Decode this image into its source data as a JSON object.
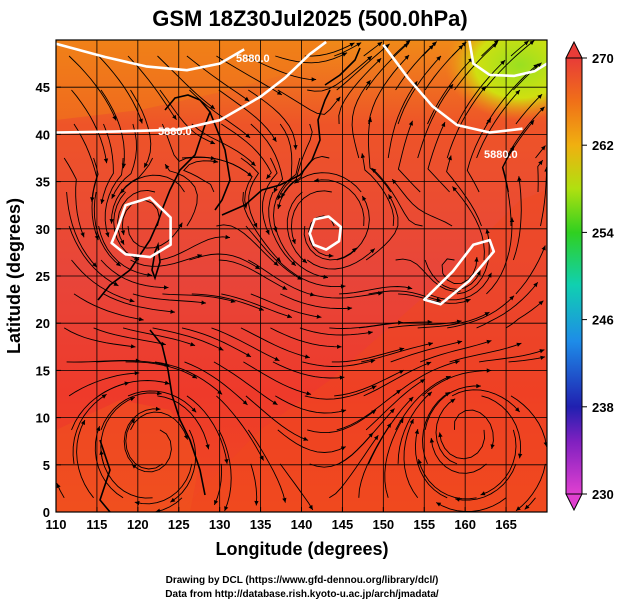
{
  "chart_data": {
    "type": "heatmap",
    "title": "GSM 18Z30Jul2025 (500.0hPa)",
    "xlabel": "Longitude (degrees)",
    "ylabel": "Latitude  (degrees)",
    "xlim": [
      110,
      170
    ],
    "ylim": [
      0,
      50
    ],
    "xticks": [
      110,
      115,
      120,
      125,
      130,
      135,
      140,
      145,
      150,
      155,
      160,
      165
    ],
    "yticks": [
      0,
      5,
      10,
      15,
      20,
      25,
      30,
      35,
      40,
      45
    ],
    "grid": true,
    "colorbar": {
      "min": 230,
      "max": 270,
      "ticks": [
        230,
        238,
        246,
        254,
        262,
        270
      ],
      "colors": [
        "#e040d0",
        "#3020b0",
        "#1e8ce8",
        "#10d0b0",
        "#40d020",
        "#b0e010",
        "#f0c010",
        "#f07010",
        "#e83c30"
      ]
    },
    "contour_label": "5880.0",
    "contours": [
      {
        "label": "5880.0",
        "points": [
          [
            110,
            40.2
          ],
          [
            117,
            40.3
          ],
          [
            125,
            40.5
          ],
          [
            130,
            41.5
          ],
          [
            135,
            44
          ],
          [
            138,
            46
          ],
          [
            141,
            48.5
          ],
          [
            143,
            49.8
          ]
        ]
      },
      {
        "label": "5880.0",
        "points": [
          [
            150,
            49.5
          ],
          [
            153,
            46
          ],
          [
            156,
            43
          ],
          [
            159,
            41
          ],
          [
            163,
            40.2
          ],
          [
            167,
            40.6
          ]
        ]
      },
      {
        "label": "5880.0",
        "points": [
          [
            110,
            49.6
          ],
          [
            116,
            48.2
          ],
          [
            121,
            47.2
          ],
          [
            126,
            46.8
          ],
          [
            130,
            47.5
          ],
          [
            133,
            49
          ]
        ]
      },
      {
        "label": "",
        "closed": true,
        "points": [
          [
            117.5,
            30
          ],
          [
            118.5,
            32.5
          ],
          [
            121.5,
            33.3
          ],
          [
            124,
            31.2
          ],
          [
            124,
            28.3
          ],
          [
            121.5,
            27
          ],
          [
            118.5,
            27.3
          ],
          [
            116.8,
            28.5
          ],
          [
            117.5,
            30
          ]
        ]
      },
      {
        "label": "",
        "closed": true,
        "points": [
          [
            141,
            29.5
          ],
          [
            141.6,
            31
          ],
          [
            143.3,
            31.3
          ],
          [
            144.8,
            30.2
          ],
          [
            144.6,
            28.7
          ],
          [
            143,
            27.8
          ],
          [
            141.5,
            28.3
          ],
          [
            141,
            29.5
          ]
        ]
      },
      {
        "label": "",
        "closed": true,
        "points": [
          [
            155,
            22.5
          ],
          [
            158.5,
            25.5
          ],
          [
            161,
            28.3
          ],
          [
            163,
            28.8
          ],
          [
            163.5,
            27.6
          ],
          [
            160.5,
            24.5
          ],
          [
            157,
            22
          ],
          [
            155,
            22.5
          ]
        ]
      },
      {
        "label": "",
        "points": [
          [
            160.5,
            50
          ],
          [
            161,
            47.5
          ],
          [
            163,
            46.3
          ],
          [
            166,
            46.2
          ],
          [
            168.5,
            46.7
          ],
          [
            170,
            47.5
          ]
        ]
      }
    ],
    "legend": "none"
  },
  "credits": {
    "line1": "Drawing by DCL (https://www.gfd-dennou.org/library/dcl/)",
    "line2": "Data from http://database.rish.kyoto-u.ac.jp/arch/jmadata/"
  }
}
